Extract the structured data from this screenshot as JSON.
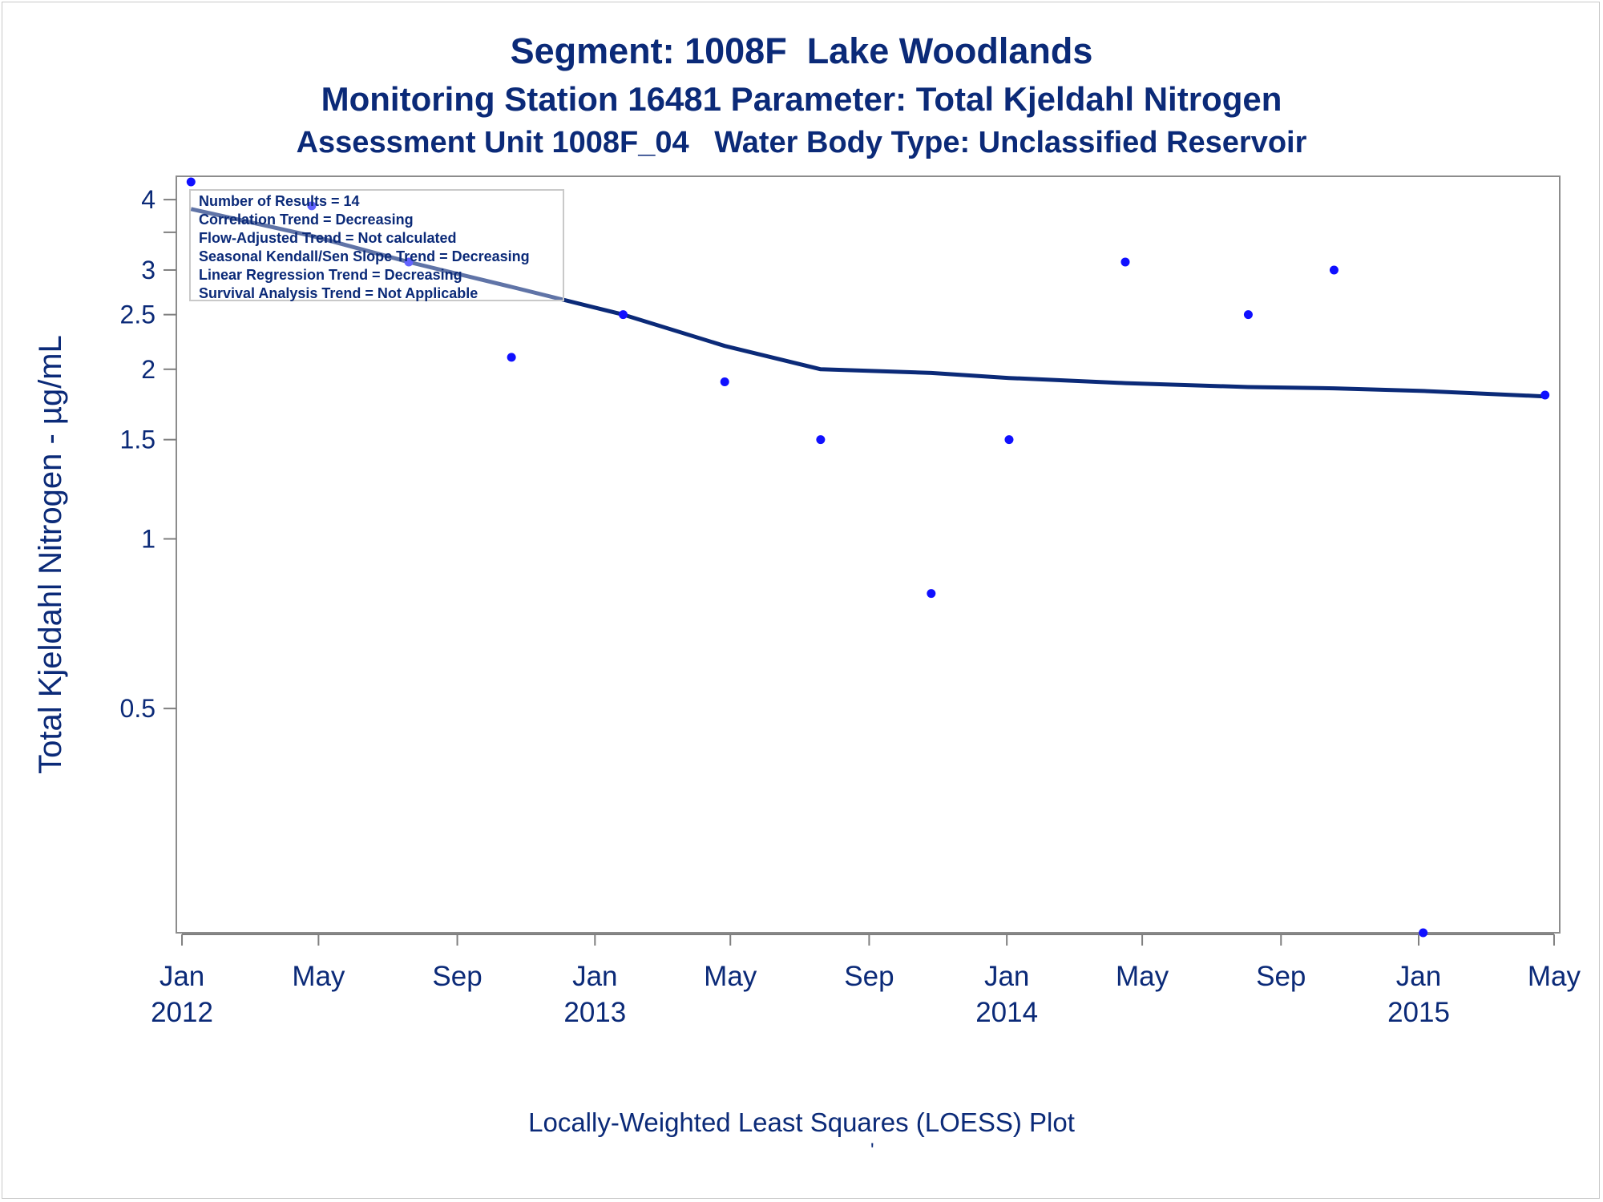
{
  "chart_data": {
    "type": "scatter",
    "title": "Segment: 1008F  Lake Woodlands",
    "subtitle": "Monitoring Station 16481 Parameter: Total Kjeldahl Nitrogen",
    "subtitle2": "Assessment Unit 1008F_04   Water Body Type: Unclassified Reservoir",
    "ylabel": "Total Kjeldahl Nitrogen -  µg/mL",
    "xlabel": "",
    "footnote": "Locally-Weighted Least Squares (LOESS) Plot",
    "footnote_mark": "'",
    "y_scale": "log",
    "ylim": [
      0.2,
      4.4
    ],
    "xlim": [
      "2011-12-27",
      "2015-05-06"
    ],
    "y_ticks": [
      {
        "value": 0.5,
        "label": "0.5"
      },
      {
        "value": 1,
        "label": "1"
      },
      {
        "value": 1.5,
        "label": "1.5"
      },
      {
        "value": 2,
        "label": "2"
      },
      {
        "value": 2.5,
        "label": "2.5"
      },
      {
        "value": 3,
        "label": "3"
      },
      {
        "value": 3.5,
        "label": ""
      },
      {
        "value": 4,
        "label": "4"
      }
    ],
    "x_ticks": [
      {
        "date": "2012-01-01",
        "label": "Jan",
        "year": "2012"
      },
      {
        "date": "2012-05-01",
        "label": "May",
        "year": ""
      },
      {
        "date": "2012-09-01",
        "label": "Sep",
        "year": ""
      },
      {
        "date": "2013-01-01",
        "label": "Jan",
        "year": "2013"
      },
      {
        "date": "2013-05-01",
        "label": "May",
        "year": ""
      },
      {
        "date": "2013-09-01",
        "label": "Sep",
        "year": ""
      },
      {
        "date": "2014-01-01",
        "label": "Jan",
        "year": "2014"
      },
      {
        "date": "2014-05-01",
        "label": "May",
        "year": ""
      },
      {
        "date": "2014-09-01",
        "label": "Sep",
        "year": ""
      },
      {
        "date": "2015-01-01",
        "label": "Jan",
        "year": "2015"
      },
      {
        "date": "2015-05-01",
        "label": "May",
        "year": ""
      }
    ],
    "series": [
      {
        "type": "scatter",
        "color": "#1010ff",
        "points": [
          {
            "x": "2012-01-09",
            "y": 4.3
          },
          {
            "x": "2012-04-25",
            "y": 3.9
          },
          {
            "x": "2012-07-20",
            "y": 3.1
          },
          {
            "x": "2012-10-19",
            "y": 2.1
          },
          {
            "x": "2013-01-26",
            "y": 2.5
          },
          {
            "x": "2013-04-26",
            "y": 1.9
          },
          {
            "x": "2013-07-20",
            "y": 1.5
          },
          {
            "x": "2013-10-26",
            "y": 0.8
          },
          {
            "x": "2014-01-03",
            "y": 1.5
          },
          {
            "x": "2014-04-16",
            "y": 3.1
          },
          {
            "x": "2014-08-03",
            "y": 2.5
          },
          {
            "x": "2014-10-18",
            "y": 3.0
          },
          {
            "x": "2015-01-05",
            "y": 0.2
          },
          {
            "x": "2015-04-23",
            "y": 1.8
          }
        ]
      },
      {
        "type": "line",
        "color": "#0b2a78",
        "points": [
          {
            "x": "2012-01-09",
            "y": 3.85
          },
          {
            "x": "2012-04-25",
            "y": 3.45
          },
          {
            "x": "2012-07-20",
            "y": 3.1
          },
          {
            "x": "2012-10-19",
            "y": 2.8
          },
          {
            "x": "2013-01-26",
            "y": 2.5
          },
          {
            "x": "2013-04-26",
            "y": 2.2
          },
          {
            "x": "2013-07-20",
            "y": 2.0
          },
          {
            "x": "2013-10-26",
            "y": 1.97
          },
          {
            "x": "2014-01-03",
            "y": 1.93
          },
          {
            "x": "2014-04-16",
            "y": 1.89
          },
          {
            "x": "2014-08-03",
            "y": 1.86
          },
          {
            "x": "2014-10-18",
            "y": 1.85
          },
          {
            "x": "2015-01-05",
            "y": 1.83
          },
          {
            "x": "2015-04-23",
            "y": 1.79
          }
        ]
      }
    ],
    "grid": false,
    "stats_box": {
      "placement": "top-left",
      "lines": [
        "Number of Results = 14",
        "Correlation Trend = Decreasing",
        "Flow-Adjusted Trend = Not calculated",
        "Seasonal Kendall/Sen Slope Trend = Decreasing",
        "Linear Regression Trend = Decreasing",
        "Survival Analysis Trend = Not Applicable"
      ]
    },
    "colors": {
      "text": "#0b2a78",
      "axis": "#7f7f7f",
      "points": "#1010ff",
      "loess": "#0b2a78"
    }
  }
}
